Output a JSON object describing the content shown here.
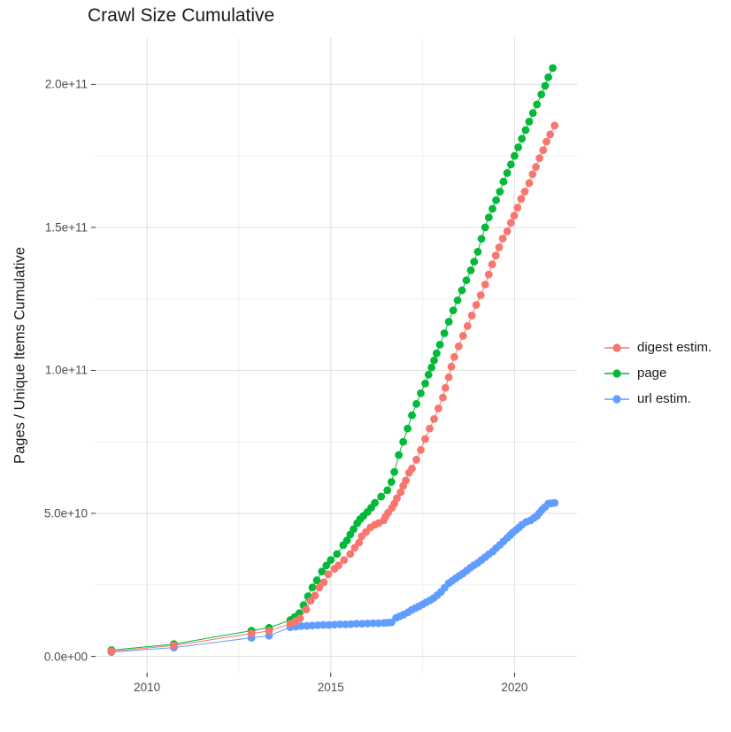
{
  "title": "Crawl Size Cumulative",
  "axes": {
    "y_label": "Pages / Unique Items Cumulative",
    "y_ticks": [
      {
        "label": "0.0e+00",
        "value_1e9": 0
      },
      {
        "label": "5.0e+10",
        "value_1e9": 50
      },
      {
        "label": "1.0e+11",
        "value_1e9": 100
      },
      {
        "label": "1.5e+11",
        "value_1e9": 150
      },
      {
        "label": "2.0e+11",
        "value_1e9": 200
      }
    ],
    "x_ticks": [
      {
        "label": "2010",
        "value": 2010
      },
      {
        "label": "2015",
        "value": 2015
      },
      {
        "label": "2020",
        "value": 2020
      }
    ],
    "y_minor_1e9": [
      25,
      75,
      125,
      175
    ],
    "x_minor": [
      2012.5,
      2017.5
    ],
    "x_range": [
      2008.6,
      2021.7
    ],
    "y_range_1e9": [
      -5.7,
      216.2
    ],
    "grid": "on",
    "legend_position": "right"
  },
  "legend": [
    {
      "label": "digest estim.",
      "color": "#F8766D"
    },
    {
      "label": "page",
      "color": "#00BA38"
    },
    {
      "label": "url estim.",
      "color": "#619CFF"
    }
  ],
  "chart_data": {
    "type": "scatter",
    "title": "Crawl Size Cumulative",
    "xlabel": "",
    "ylabel": "Pages / Unique Items Cumulative",
    "value_unit": "1e9 items (points given as [year, value_1e9])",
    "series": [
      {
        "name": "page",
        "color": "#00BA38",
        "points": [
          [
            2009.03,
            2.2
          ],
          [
            2010.73,
            4.3
          ],
          [
            2012.84,
            9.0
          ],
          [
            2013.32,
            10.0
          ],
          [
            2013.9,
            12.7
          ],
          [
            2014.02,
            13.8
          ],
          [
            2014.14,
            15.1
          ],
          [
            2014.26,
            17.9
          ],
          [
            2014.38,
            21.0
          ],
          [
            2014.5,
            24.1
          ],
          [
            2014.62,
            26.6
          ],
          [
            2014.76,
            29.7
          ],
          [
            2014.88,
            31.8
          ],
          [
            2015.0,
            33.7
          ],
          [
            2015.17,
            35.8
          ],
          [
            2015.34,
            38.9
          ],
          [
            2015.44,
            40.5
          ],
          [
            2015.53,
            42.6
          ],
          [
            2015.62,
            44.5
          ],
          [
            2015.72,
            46.6
          ],
          [
            2015.8,
            48.0
          ],
          [
            2015.89,
            49.1
          ],
          [
            2016.0,
            50.5
          ],
          [
            2016.1,
            52.0
          ],
          [
            2016.2,
            53.7
          ],
          [
            2016.37,
            55.9
          ],
          [
            2016.54,
            58.1
          ],
          [
            2016.65,
            61.0
          ],
          [
            2016.73,
            64.5
          ],
          [
            2016.85,
            70.4
          ],
          [
            2016.97,
            75.0
          ],
          [
            2017.09,
            79.7
          ],
          [
            2017.21,
            84.3
          ],
          [
            2017.33,
            88.3
          ],
          [
            2017.45,
            92.0
          ],
          [
            2017.57,
            95.4
          ],
          [
            2017.66,
            98.5
          ],
          [
            2017.74,
            101.0
          ],
          [
            2017.81,
            103.5
          ],
          [
            2017.88,
            106.0
          ],
          [
            2017.97,
            109.0
          ],
          [
            2018.09,
            113.0
          ],
          [
            2018.21,
            117.0
          ],
          [
            2018.33,
            121.0
          ],
          [
            2018.45,
            124.5
          ],
          [
            2018.57,
            128.0
          ],
          [
            2018.69,
            131.5
          ],
          [
            2018.81,
            135.0
          ],
          [
            2018.9,
            138.0
          ],
          [
            2019.0,
            141.5
          ],
          [
            2019.1,
            146.0
          ],
          [
            2019.2,
            150.0
          ],
          [
            2019.3,
            153.5
          ],
          [
            2019.4,
            156.5
          ],
          [
            2019.5,
            159.5
          ],
          [
            2019.6,
            162.5
          ],
          [
            2019.7,
            166.0
          ],
          [
            2019.8,
            169.0
          ],
          [
            2019.9,
            172.0
          ],
          [
            2020.0,
            175.0
          ],
          [
            2020.1,
            178.0
          ],
          [
            2020.2,
            181.0
          ],
          [
            2020.3,
            184.0
          ],
          [
            2020.4,
            187.0
          ],
          [
            2020.5,
            190.0
          ],
          [
            2020.61,
            193.0
          ],
          [
            2020.73,
            196.5
          ],
          [
            2020.83,
            199.5
          ],
          [
            2020.92,
            202.5
          ],
          [
            2021.04,
            205.7
          ]
        ]
      },
      {
        "name": "url estim.",
        "color": "#619CFF",
        "points": [
          [
            2009.03,
            1.5
          ],
          [
            2010.73,
            3.1
          ],
          [
            2012.84,
            6.5
          ],
          [
            2013.32,
            7.2
          ],
          [
            2013.9,
            10.2
          ],
          [
            2014.05,
            10.4
          ],
          [
            2014.2,
            10.6
          ],
          [
            2014.35,
            10.7
          ],
          [
            2014.5,
            10.8
          ],
          [
            2014.65,
            10.9
          ],
          [
            2014.8,
            11.0
          ],
          [
            2014.95,
            11.0
          ],
          [
            2015.1,
            11.1
          ],
          [
            2015.25,
            11.2
          ],
          [
            2015.4,
            11.2
          ],
          [
            2015.55,
            11.3
          ],
          [
            2015.7,
            11.4
          ],
          [
            2015.85,
            11.4
          ],
          [
            2016.0,
            11.5
          ],
          [
            2016.15,
            11.6
          ],
          [
            2016.3,
            11.6
          ],
          [
            2016.45,
            11.7
          ],
          [
            2016.55,
            11.8
          ],
          [
            2016.65,
            11.9
          ],
          [
            2016.78,
            13.5
          ],
          [
            2016.88,
            14.0
          ],
          [
            2016.98,
            14.6
          ],
          [
            2017.1,
            15.4
          ],
          [
            2017.2,
            16.2
          ],
          [
            2017.3,
            16.9
          ],
          [
            2017.4,
            17.5
          ],
          [
            2017.5,
            18.2
          ],
          [
            2017.6,
            18.9
          ],
          [
            2017.7,
            19.6
          ],
          [
            2017.8,
            20.4
          ],
          [
            2017.9,
            21.4
          ],
          [
            2018.0,
            22.6
          ],
          [
            2018.1,
            24.0
          ],
          [
            2018.21,
            25.6
          ],
          [
            2018.3,
            26.4
          ],
          [
            2018.4,
            27.3
          ],
          [
            2018.5,
            28.2
          ],
          [
            2018.6,
            29.0
          ],
          [
            2018.7,
            30.0
          ],
          [
            2018.8,
            31.0
          ],
          [
            2018.9,
            31.9
          ],
          [
            2019.0,
            32.7
          ],
          [
            2019.1,
            33.7
          ],
          [
            2019.2,
            34.7
          ],
          [
            2019.3,
            35.7
          ],
          [
            2019.41,
            36.7
          ],
          [
            2019.5,
            37.8
          ],
          [
            2019.6,
            39.0
          ],
          [
            2019.7,
            40.2
          ],
          [
            2019.8,
            41.4
          ],
          [
            2019.88,
            42.4
          ],
          [
            2019.95,
            43.3
          ],
          [
            2020.04,
            44.2
          ],
          [
            2020.12,
            45.1
          ],
          [
            2020.2,
            46.0
          ],
          [
            2020.32,
            47.0
          ],
          [
            2020.44,
            47.6
          ],
          [
            2020.53,
            48.4
          ],
          [
            2020.61,
            49.1
          ],
          [
            2020.68,
            50.2
          ],
          [
            2020.75,
            51.3
          ],
          [
            2020.83,
            52.2
          ],
          [
            2020.92,
            53.4
          ],
          [
            2021.0,
            53.5
          ],
          [
            2021.09,
            53.7
          ]
        ]
      },
      {
        "name": "digest estim.",
        "color": "#F8766D",
        "points": [
          [
            2009.03,
            1.8
          ],
          [
            2010.73,
            3.8
          ],
          [
            2012.84,
            8.0
          ],
          [
            2013.32,
            8.9
          ],
          [
            2013.9,
            11.4
          ],
          [
            2014.04,
            12.3
          ],
          [
            2014.16,
            13.3
          ],
          [
            2014.33,
            16.4
          ],
          [
            2014.45,
            19.5
          ],
          [
            2014.57,
            21.3
          ],
          [
            2014.69,
            24.1
          ],
          [
            2014.81,
            25.9
          ],
          [
            2014.93,
            28.7
          ],
          [
            2015.1,
            30.6
          ],
          [
            2015.21,
            31.8
          ],
          [
            2015.36,
            33.7
          ],
          [
            2015.53,
            35.8
          ],
          [
            2015.65,
            38.0
          ],
          [
            2015.77,
            39.8
          ],
          [
            2015.84,
            42.0
          ],
          [
            2015.96,
            43.5
          ],
          [
            2016.08,
            45.1
          ],
          [
            2016.2,
            46.0
          ],
          [
            2016.3,
            46.6
          ],
          [
            2016.44,
            47.6
          ],
          [
            2016.49,
            48.8
          ],
          [
            2016.56,
            50.3
          ],
          [
            2016.66,
            51.9
          ],
          [
            2016.73,
            53.4
          ],
          [
            2016.8,
            55.3
          ],
          [
            2016.9,
            57.4
          ],
          [
            2016.97,
            59.6
          ],
          [
            2017.04,
            61.5
          ],
          [
            2017.13,
            64.2
          ],
          [
            2017.21,
            65.7
          ],
          [
            2017.33,
            68.8
          ],
          [
            2017.45,
            72.2
          ],
          [
            2017.57,
            76.0
          ],
          [
            2017.69,
            79.7
          ],
          [
            2017.81,
            83.0
          ],
          [
            2017.93,
            86.7
          ],
          [
            2018.05,
            90.5
          ],
          [
            2018.12,
            93.9
          ],
          [
            2018.21,
            97.6
          ],
          [
            2018.28,
            101.3
          ],
          [
            2018.36,
            104.7
          ],
          [
            2018.48,
            108.4
          ],
          [
            2018.6,
            112.1
          ],
          [
            2018.72,
            115.5
          ],
          [
            2018.84,
            119.2
          ],
          [
            2018.96,
            122.9
          ],
          [
            2019.08,
            126.3
          ],
          [
            2019.2,
            130.0
          ],
          [
            2019.3,
            133.5
          ],
          [
            2019.39,
            137.1
          ],
          [
            2019.49,
            140.2
          ],
          [
            2019.58,
            143.0
          ],
          [
            2019.68,
            146.1
          ],
          [
            2019.8,
            148.6
          ],
          [
            2019.9,
            151.6
          ],
          [
            2019.99,
            154.1
          ],
          [
            2020.08,
            156.9
          ],
          [
            2020.18,
            160.0
          ],
          [
            2020.28,
            162.5
          ],
          [
            2020.4,
            165.5
          ],
          [
            2020.49,
            168.6
          ],
          [
            2020.58,
            171.1
          ],
          [
            2020.68,
            174.2
          ],
          [
            2020.78,
            177.0
          ],
          [
            2020.87,
            180.0
          ],
          [
            2020.97,
            182.5
          ],
          [
            2021.09,
            185.6
          ]
        ]
      }
    ]
  },
  "style": {
    "grid_major_color": "#e3e3e3",
    "grid_minor_color": "#efefef",
    "tick_mark_color": "#333333",
    "point_radius": 4.4
  }
}
